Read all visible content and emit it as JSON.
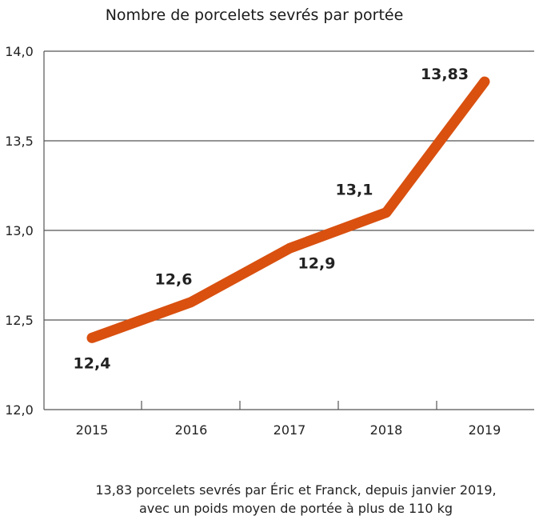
{
  "chart_data": {
    "type": "line",
    "title": "Nombre de porcelets sevrés par portée",
    "categories": [
      "2015",
      "2016",
      "2017",
      "2018",
      "2019"
    ],
    "series": [
      {
        "name": "Porcelets sevrés par portée",
        "values": [
          12.4,
          12.6,
          12.9,
          13.1,
          13.83
        ]
      }
    ],
    "data_labels": [
      "12,4",
      "12,6",
      "12,9",
      "13,1",
      "13,83"
    ],
    "ylim": [
      12.0,
      14.0
    ],
    "yticks": [
      12.0,
      12.5,
      13.0,
      13.5,
      14.0
    ],
    "ytick_labels": [
      "12,0",
      "12,5",
      "13,0",
      "13,5",
      "14,0"
    ],
    "xlabel": "",
    "ylabel": "",
    "grid": true,
    "line_color": "#d9500f"
  },
  "caption": {
    "line1": "13,83 porcelets sevrés par Éric et Franck, depuis janvier 2019,",
    "line2": "avec un poids moyen de portée à plus de 110 kg"
  }
}
